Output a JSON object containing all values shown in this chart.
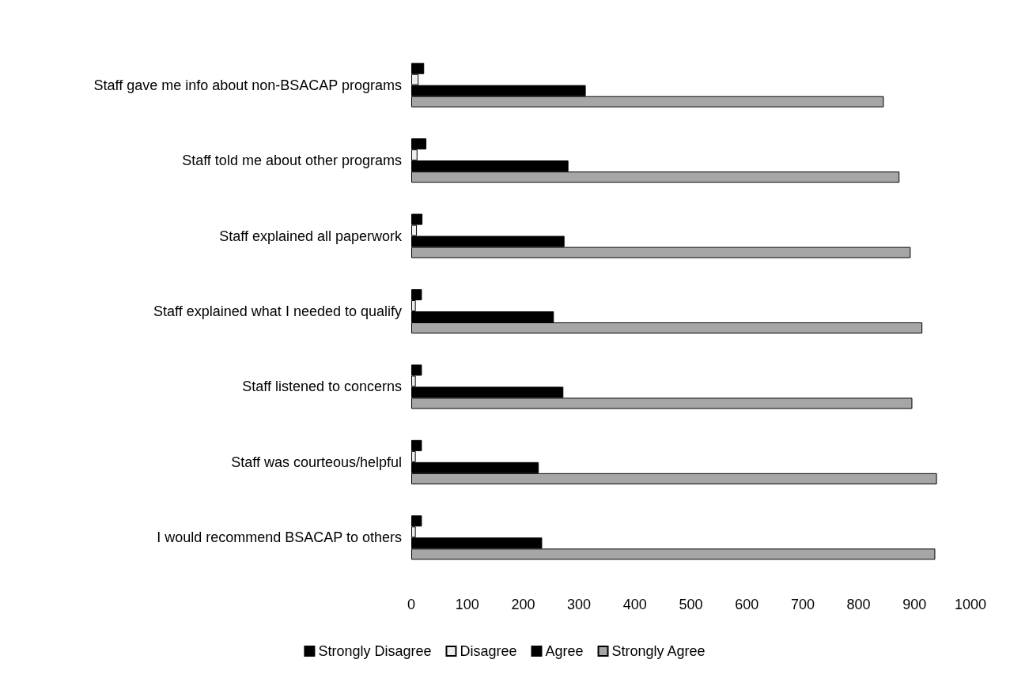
{
  "chart_data": {
    "type": "bar",
    "orientation": "horizontal",
    "categories": [
      "Staff gave me info about non-BSACAP programs",
      "Staff told me about other programs",
      "Staff explained all paperwork",
      "Staff explained what I needed to qualify",
      "Staff listened to concerns",
      "Staff was courteous/helpful",
      "I would recommend BSACAP to others"
    ],
    "series": [
      {
        "name": "Strongly Disagree",
        "color": "#000000",
        "values": [
          23,
          27,
          20,
          19,
          19,
          19,
          19
        ]
      },
      {
        "name": "Disagree",
        "color": "#eeeeee",
        "values": [
          13,
          11,
          10,
          8,
          8,
          8,
          8
        ]
      },
      {
        "name": "Agree",
        "color": "#000000",
        "values": [
          312,
          281,
          274,
          255,
          272,
          228,
          234
        ]
      },
      {
        "name": "Strongly Agree",
        "color": "#a6a6a6",
        "values": [
          845,
          873,
          893,
          914,
          896,
          940,
          937
        ]
      }
    ],
    "xlim": [
      0,
      1000
    ],
    "xticks": [
      0,
      100,
      200,
      300,
      400,
      500,
      600,
      700,
      800,
      900,
      1000
    ],
    "grid": false,
    "legend": "bottom"
  }
}
